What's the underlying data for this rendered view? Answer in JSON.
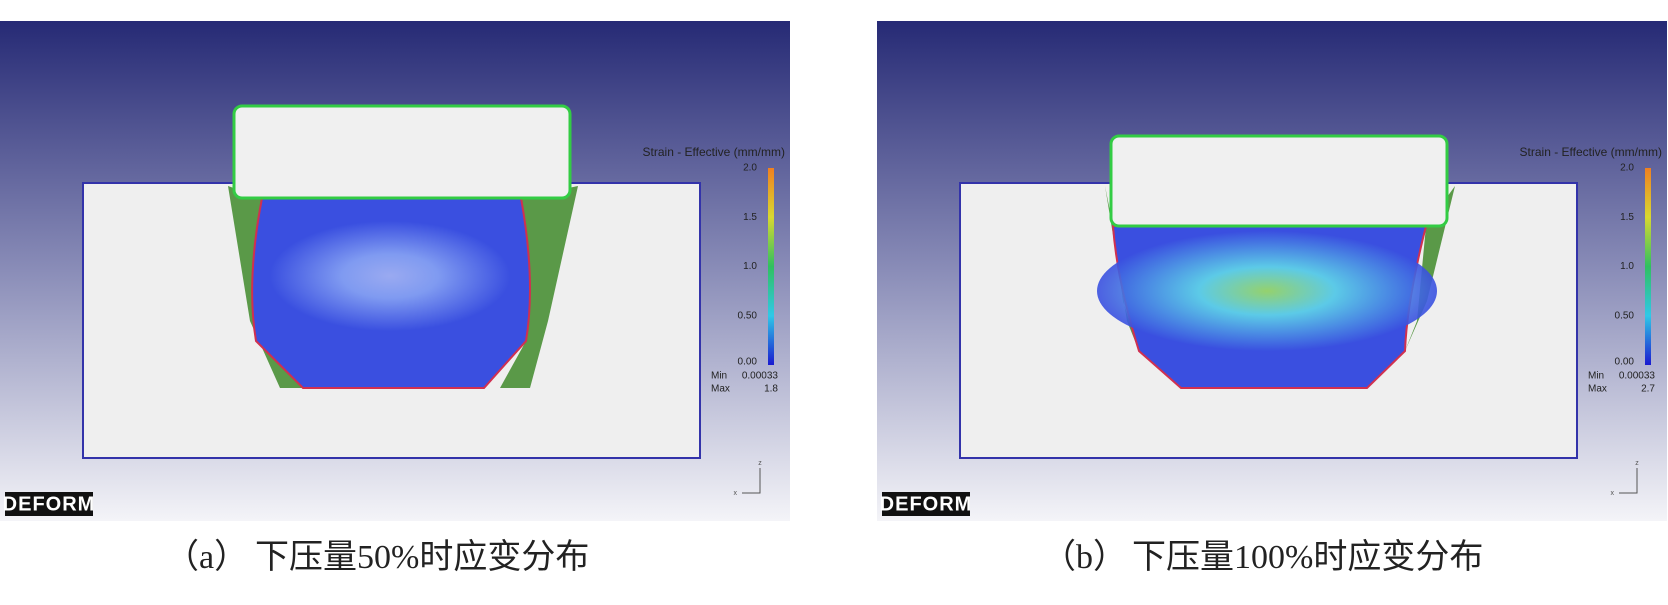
{
  "panels": [
    {
      "legend_title": "Strain - Effective (mm/mm)",
      "legend_ticks": [
        "2.0",
        "1.5",
        "1.0",
        "0.50",
        "0.00"
      ],
      "min_label": "Min",
      "min_value": "0.00033",
      "max_label": "Max",
      "max_value": "1.8",
      "logo": "DEFORM",
      "axis_z": "z",
      "axis_x": "x",
      "caption_label": "（a）",
      "caption": "下压量50%时应变分布"
    },
    {
      "legend_title": "Strain - Effective (mm/mm)",
      "legend_ticks": [
        "2.0",
        "1.5",
        "1.0",
        "0.50",
        "0.00"
      ],
      "min_label": "Min",
      "min_value": "0.00033",
      "max_label": "Max",
      "max_value": "2.7",
      "logo": "DEFORM",
      "axis_z": "z",
      "axis_x": "x",
      "caption_label": "（b）",
      "caption": "下压量100%时应变分布"
    }
  ]
}
